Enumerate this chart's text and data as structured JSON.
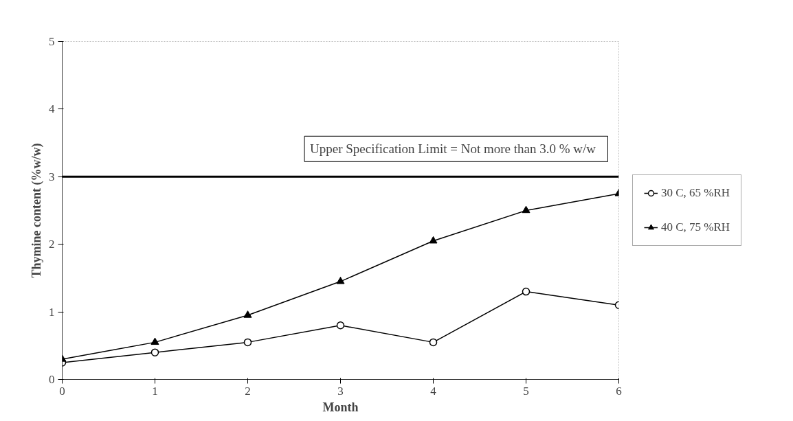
{
  "chart_data": {
    "type": "line",
    "xlabel": "Month",
    "ylabel": "Thymine content (%w/w)",
    "x": [
      0,
      1,
      2,
      3,
      4,
      5,
      6
    ],
    "series": [
      {
        "name": "30 C, 65 %RH",
        "color": "#000000",
        "marker": "circle",
        "values": [
          0.25,
          0.4,
          0.55,
          0.8,
          0.55,
          1.3,
          1.1
        ]
      },
      {
        "name": "40 C, 75 %RH",
        "color": "#000000",
        "marker": "triangle",
        "values": [
          0.3,
          0.55,
          0.95,
          1.45,
          2.05,
          2.5,
          2.75
        ]
      }
    ],
    "ref_lines": [
      {
        "axis": "y",
        "value": 3,
        "label": "Upper Specification Limit  =  Not more than 3.0 % w/w",
        "color": "#000000"
      }
    ],
    "xlim": [
      0,
      6
    ],
    "xticks": [
      0,
      1,
      2,
      3,
      4,
      5,
      6
    ],
    "ylim": [
      0,
      5
    ],
    "yticks": [
      0,
      1,
      2,
      3,
      4,
      5
    ],
    "grid": false,
    "legend": "right",
    "line_style": "solid"
  }
}
